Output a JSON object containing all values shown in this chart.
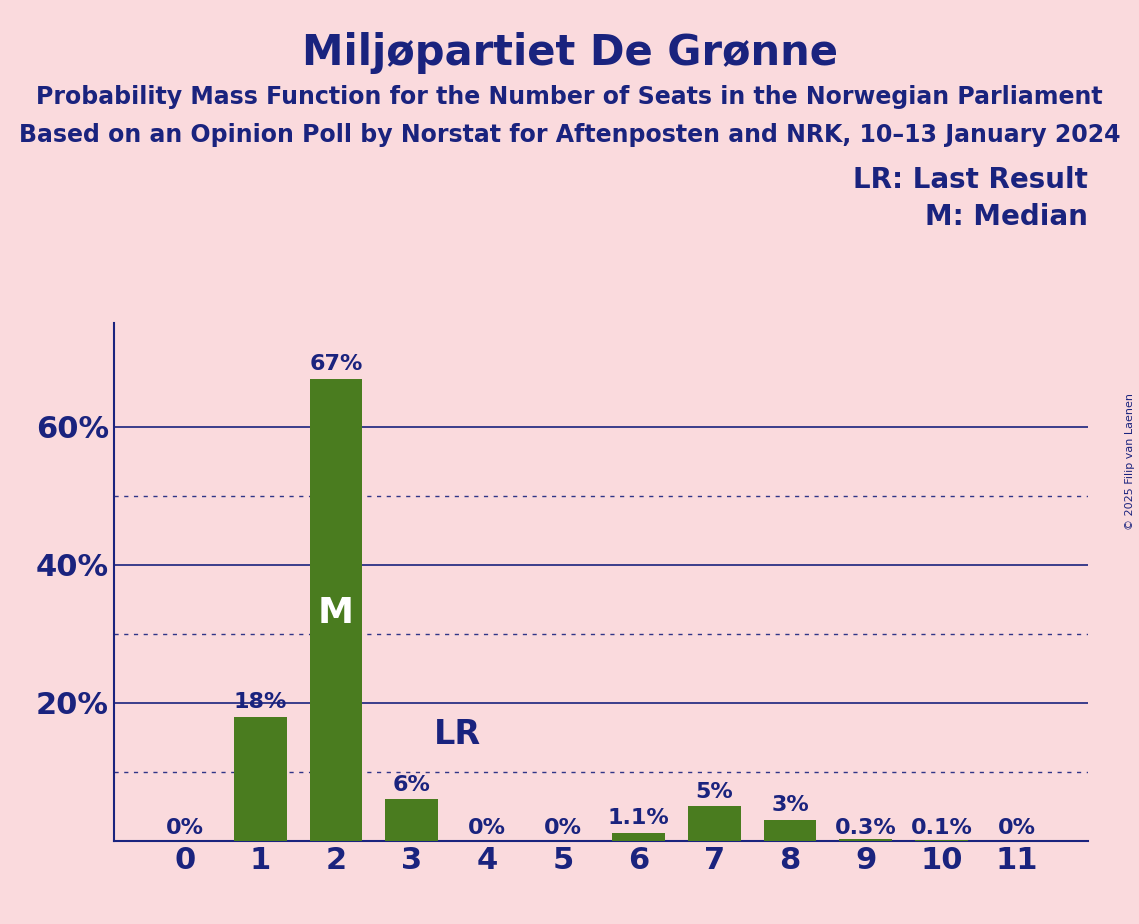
{
  "title": "Miljøpartiet De Grønne",
  "subtitle1": "Probability Mass Function for the Number of Seats in the Norwegian Parliament",
  "subtitle2": "Based on an Opinion Poll by Norstat for Aftenposten and NRK, 10–13 January 2024",
  "copyright": "© 2025 Filip van Laenen",
  "categories": [
    0,
    1,
    2,
    3,
    4,
    5,
    6,
    7,
    8,
    9,
    10,
    11
  ],
  "values": [
    0.0,
    18.0,
    67.0,
    6.0,
    0.0,
    0.0,
    1.1,
    5.0,
    3.0,
    0.3,
    0.1,
    0.0
  ],
  "bar_labels": [
    "0%",
    "18%",
    "67%",
    "6%",
    "0%",
    "0%",
    "1.1%",
    "5%",
    "3%",
    "0.3%",
    "0.1%",
    "0%"
  ],
  "bar_color": "#4a7c1f",
  "background_color": "#fadadd",
  "text_color": "#1a237e",
  "grid_solid_color": "#1a237e",
  "grid_dotted_color": "#1a237e",
  "ylim": [
    0,
    75
  ],
  "yticks_solid": [
    20,
    40,
    60
  ],
  "yticks_dotted": [
    10,
    30,
    50
  ],
  "median_bar_index": 2,
  "median_label": "M",
  "lr_bar_index": 3,
  "lr_label": "LR",
  "legend_lr": "LR: Last Result",
  "legend_m": "M: Median",
  "title_fontsize": 30,
  "subtitle_fontsize": 17,
  "axis_tick_fontsize": 22,
  "bar_label_fontsize": 16,
  "inside_label_fontsize": 26,
  "lr_label_fontsize": 24,
  "legend_fontsize": 20,
  "copyright_fontsize": 8
}
